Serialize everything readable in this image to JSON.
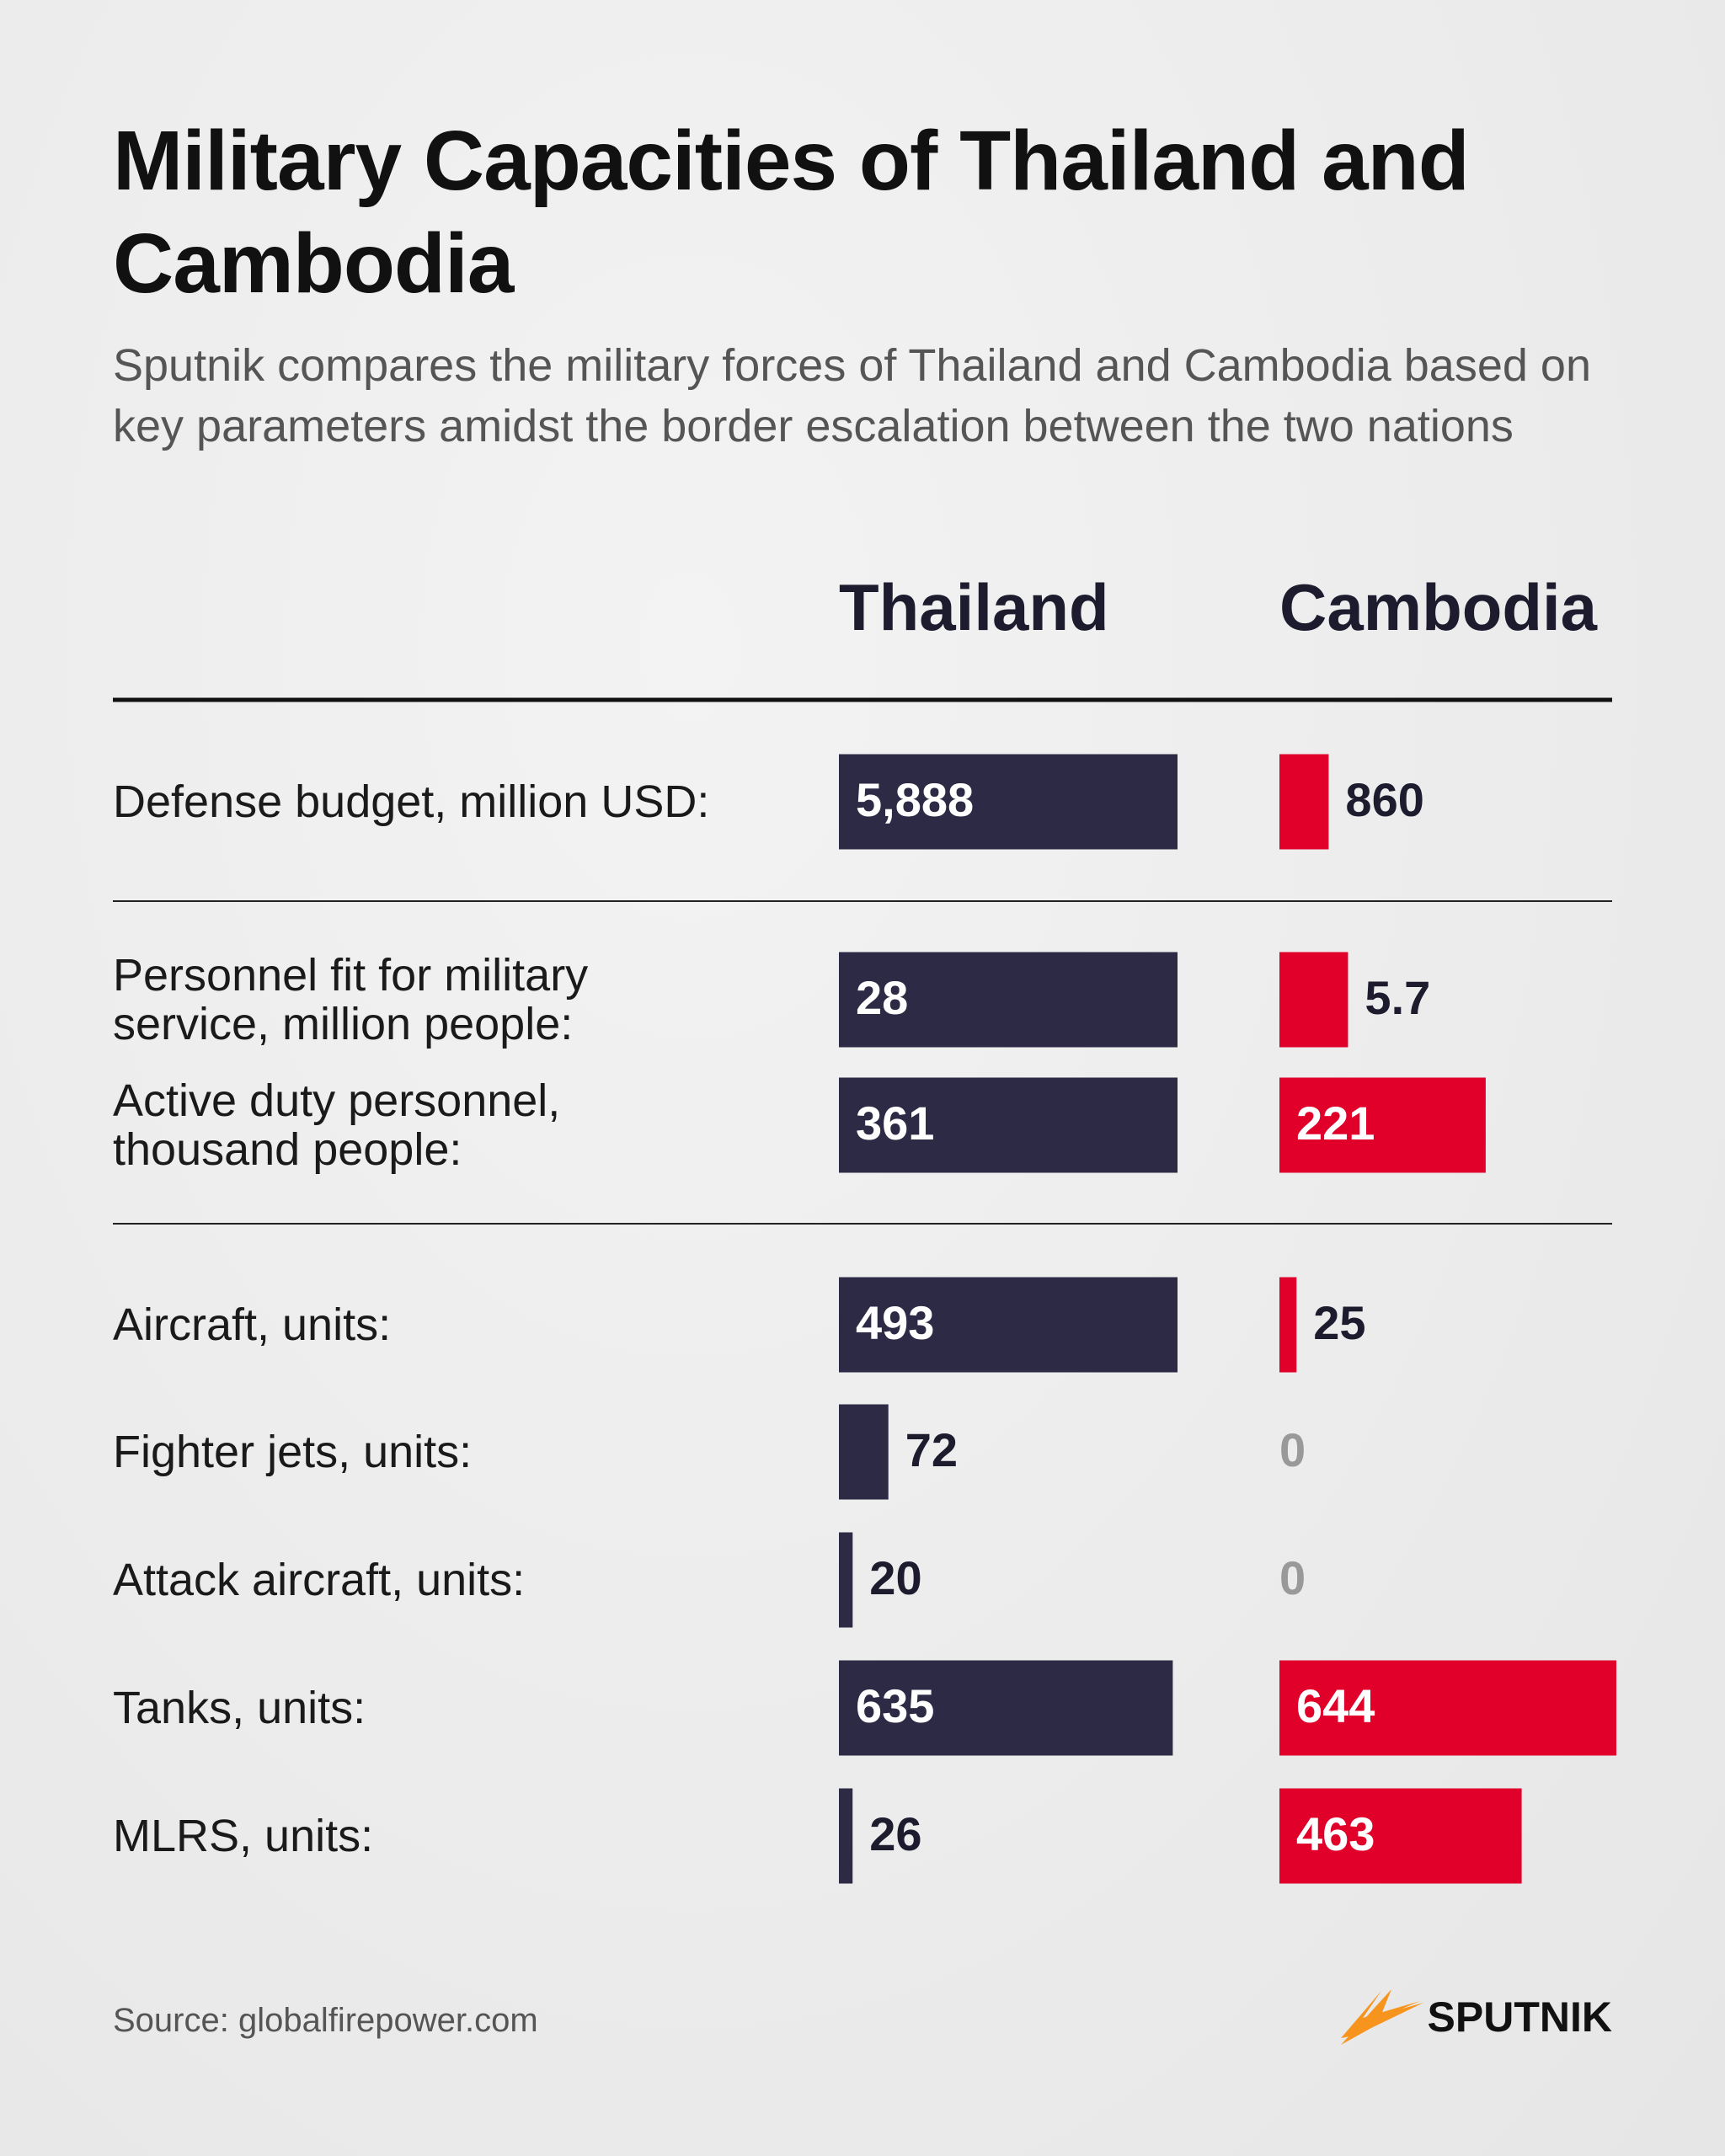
{
  "title": "Military Capacities of Thailand and Cambodia",
  "subtitle": "Sputnik compares the military forces of Thailand and Cambodia based on key parameters amidst the border escalation between the two nations",
  "chart_data": {
    "type": "bar",
    "series": [
      {
        "name": "Thailand",
        "color": "#2c2a45"
      },
      {
        "name": "Cambodia",
        "color": "#e0002a"
      }
    ],
    "sections": [
      [
        {
          "label": [
            "Defense budget, million USD:"
          ],
          "values": [
            5888,
            860
          ],
          "value_labels": [
            "5,888",
            "860"
          ]
        }
      ],
      [
        {
          "label": [
            "Personnel fit for military",
            "service, million people:"
          ],
          "values": [
            28,
            5.7
          ]
        },
        {
          "label": [
            "Active duty personnel,",
            "thousand people:"
          ],
          "values": [
            361,
            221
          ]
        }
      ],
      [
        {
          "label": [
            "Aircraft, units:"
          ],
          "values": [
            493,
            25
          ]
        },
        {
          "label": [
            "Fighter jets, units:"
          ],
          "values": [
            72,
            0
          ]
        },
        {
          "label": [
            "Attack aircraft, units:"
          ],
          "values": [
            20,
            0
          ]
        },
        {
          "label": [
            "Tanks, units:"
          ],
          "values": [
            635,
            644
          ]
        },
        {
          "label": [
            "MLRS, units:"
          ],
          "values": [
            26,
            463
          ]
        }
      ]
    ]
  },
  "footer": {
    "source": "Source: globalfirepower.com",
    "brand": "SPUTNIK"
  }
}
